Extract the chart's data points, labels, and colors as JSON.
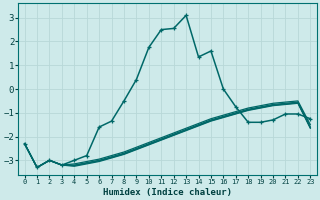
{
  "title": "",
  "xlabel": "Humidex (Indice chaleur)",
  "ylabel": "",
  "bg_color": "#ceeaea",
  "grid_color": "#b8d8d8",
  "line_color": "#006868",
  "xlim": [
    -0.5,
    23.5
  ],
  "ylim": [
    -3.6,
    3.6
  ],
  "xticks": [
    0,
    1,
    2,
    3,
    4,
    5,
    6,
    7,
    8,
    9,
    10,
    11,
    12,
    13,
    14,
    15,
    16,
    17,
    18,
    19,
    20,
    21,
    22,
    23
  ],
  "yticks": [
    -3,
    -2,
    -1,
    0,
    1,
    2,
    3
  ],
  "lines": [
    {
      "x": [
        0,
        1,
        2,
        3,
        4,
        5,
        6,
        7,
        8,
        9,
        10,
        11,
        12,
        13,
        14,
        15,
        16,
        17,
        18,
        19,
        20,
        21,
        22,
        23
      ],
      "y": [
        -2.3,
        -3.3,
        -3.0,
        -3.2,
        -3.0,
        -2.8,
        -1.6,
        -1.35,
        -0.5,
        0.4,
        1.75,
        2.5,
        2.55,
        3.1,
        1.35,
        1.6,
        0.0,
        -0.75,
        -1.4,
        -1.4,
        -1.3,
        -1.05,
        -1.05,
        -1.25
      ],
      "marker": true,
      "linewidth": 1.1
    },
    {
      "x": [
        0,
        1,
        2,
        3,
        4,
        5,
        6,
        7,
        8,
        9,
        10,
        11,
        12,
        13,
        14,
        15,
        16,
        17,
        18,
        19,
        20,
        21,
        22,
        23
      ],
      "y": [
        -2.3,
        -3.3,
        -3.0,
        -3.2,
        -3.15,
        -3.05,
        -2.95,
        -2.8,
        -2.65,
        -2.45,
        -2.25,
        -2.05,
        -1.85,
        -1.65,
        -1.45,
        -1.25,
        -1.1,
        -0.95,
        -0.8,
        -0.7,
        -0.6,
        -0.55,
        -0.5,
        -1.5
      ],
      "marker": false,
      "linewidth": 0.9
    },
    {
      "x": [
        0,
        1,
        2,
        3,
        4,
        5,
        6,
        7,
        8,
        9,
        10,
        11,
        12,
        13,
        14,
        15,
        16,
        17,
        18,
        19,
        20,
        21,
        22,
        23
      ],
      "y": [
        -2.3,
        -3.3,
        -3.0,
        -3.2,
        -3.2,
        -3.1,
        -3.0,
        -2.85,
        -2.7,
        -2.5,
        -2.3,
        -2.1,
        -1.9,
        -1.7,
        -1.5,
        -1.3,
        -1.15,
        -1.0,
        -0.85,
        -0.75,
        -0.65,
        -0.6,
        -0.55,
        -1.6
      ],
      "marker": false,
      "linewidth": 0.9
    },
    {
      "x": [
        0,
        1,
        2,
        3,
        4,
        5,
        6,
        7,
        8,
        9,
        10,
        11,
        12,
        13,
        14,
        15,
        16,
        17,
        18,
        19,
        20,
        21,
        22,
        23
      ],
      "y": [
        -2.3,
        -3.3,
        -3.0,
        -3.2,
        -3.22,
        -3.12,
        -3.02,
        -2.88,
        -2.73,
        -2.53,
        -2.33,
        -2.13,
        -1.93,
        -1.73,
        -1.53,
        -1.33,
        -1.18,
        -1.03,
        -0.88,
        -0.78,
        -0.68,
        -0.63,
        -0.58,
        -1.63
      ],
      "marker": false,
      "linewidth": 0.9
    },
    {
      "x": [
        0,
        1,
        2,
        3,
        4,
        5,
        6,
        7,
        8,
        9,
        10,
        11,
        12,
        13,
        14,
        15,
        16,
        17,
        18,
        19,
        20,
        21,
        22,
        23
      ],
      "y": [
        -2.3,
        -3.3,
        -3.0,
        -3.2,
        -3.25,
        -3.15,
        -3.05,
        -2.9,
        -2.75,
        -2.55,
        -2.35,
        -2.15,
        -1.95,
        -1.75,
        -1.55,
        -1.35,
        -1.2,
        -1.05,
        -0.9,
        -0.8,
        -0.7,
        -0.65,
        -0.6,
        -1.65
      ],
      "marker": false,
      "linewidth": 0.9
    }
  ]
}
